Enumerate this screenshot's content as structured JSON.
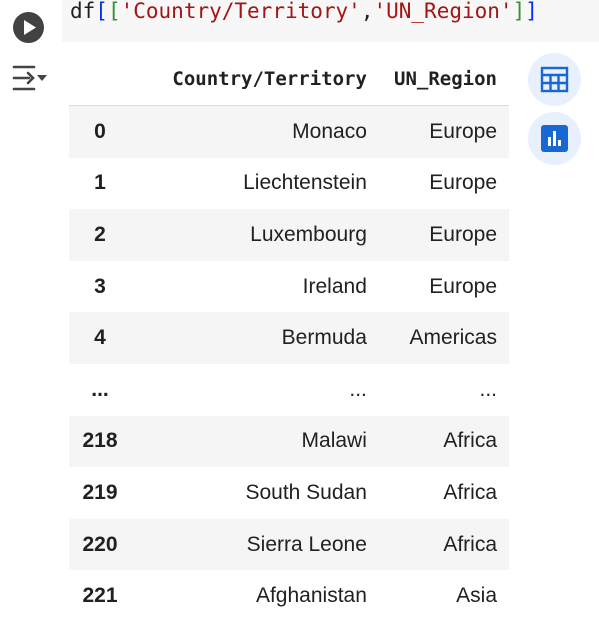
{
  "code": {
    "parts": [
      "df",
      "[",
      "[",
      "'Country/Territory'",
      ",",
      "'UN_Region'",
      "]",
      "]"
    ]
  },
  "table": {
    "columns": [
      "Country/Territory",
      "UN_Region"
    ],
    "rows": [
      {
        "index": "0",
        "country": "Monaco",
        "region": "Europe"
      },
      {
        "index": "1",
        "country": "Liechtenstein",
        "region": "Europe"
      },
      {
        "index": "2",
        "country": "Luxembourg",
        "region": "Europe"
      },
      {
        "index": "3",
        "country": "Ireland",
        "region": "Europe"
      },
      {
        "index": "4",
        "country": "Bermuda",
        "region": "Americas"
      },
      {
        "index": "...",
        "country": "...",
        "region": "..."
      },
      {
        "index": "218",
        "country": "Malawi",
        "region": "Africa"
      },
      {
        "index": "219",
        "country": "South Sudan",
        "region": "Africa"
      },
      {
        "index": "220",
        "country": "Sierra Leone",
        "region": "Africa"
      },
      {
        "index": "221",
        "country": "Afghanistan",
        "region": "Asia"
      }
    ]
  },
  "icons": {
    "run": "play-icon",
    "output": "output-menu-icon",
    "table_view": "table-icon",
    "chart_suggest": "bar-chart-icon"
  },
  "colors": {
    "accent": "#1967d2",
    "accent_bg": "#e8f0fe",
    "row_stripe": "#f5f5f5"
  }
}
